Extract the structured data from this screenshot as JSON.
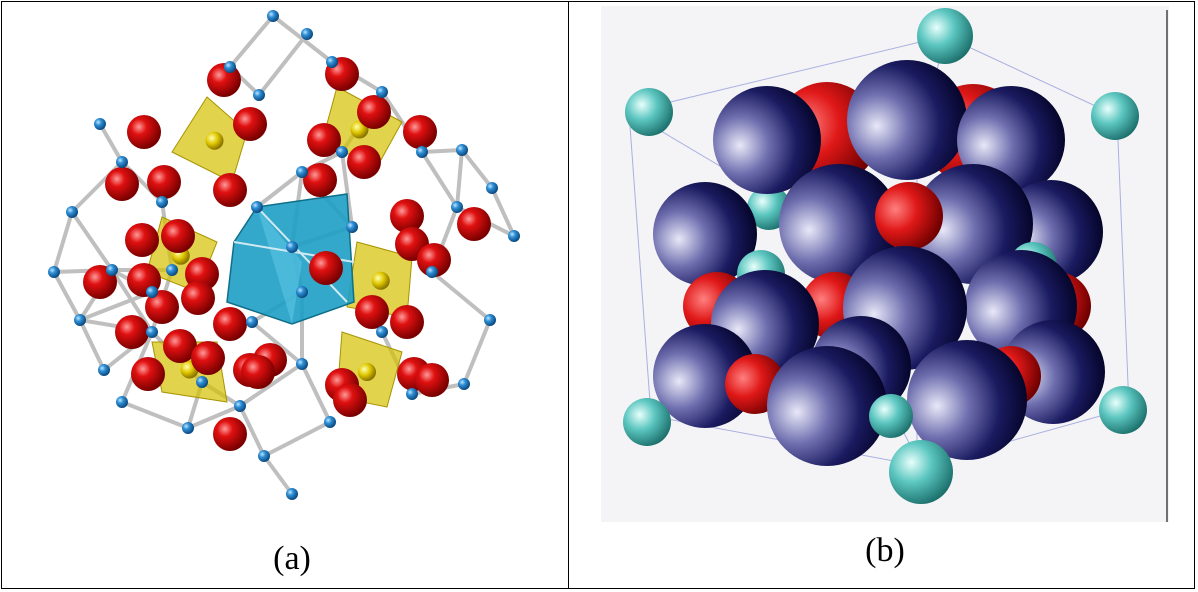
{
  "figure": {
    "panels": [
      {
        "id": "a",
        "caption": "(a)",
        "description_icon": "polyhedral-crystal-structure"
      },
      {
        "id": "b",
        "caption": "(b)",
        "description_icon": "space-filling-crystal-structure"
      }
    ],
    "colors": {
      "oxygen": "#d10000",
      "small_atom": "#2f8fd6",
      "tetrahedron": "#d4c000",
      "octahedron": "#1e9fc4",
      "bond": "#cfcfcf",
      "large_sphere": "#14144f",
      "teal_sphere": "#3fb6b0",
      "red_sphere": "#e01818"
    }
  }
}
